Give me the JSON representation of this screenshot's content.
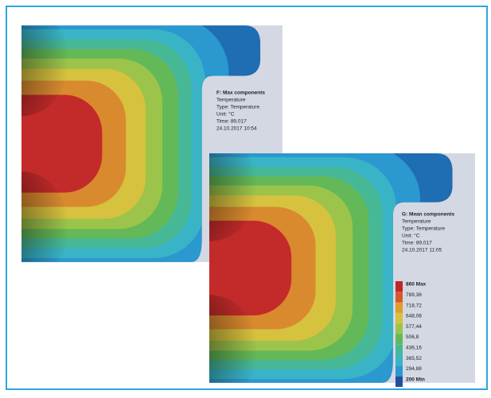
{
  "panels": [
    {
      "title": "F: Max components",
      "lines": [
        "Temperature",
        "Type: Temperature",
        "Unit: °C",
        "Time: 89,017",
        "24.10.2017 10:54"
      ]
    },
    {
      "title": "G: Mean components",
      "lines": [
        "Temperature",
        "Type: Temperature",
        "Unit: °C",
        "Time: 89,017",
        "24.10.2017 11:05"
      ],
      "legend": [
        "860 Max",
        "789,36",
        "718,72",
        "648,08",
        "577,44",
        "506,8",
        "436,16",
        "365,52",
        "294,88",
        "200 Min"
      ]
    }
  ]
}
